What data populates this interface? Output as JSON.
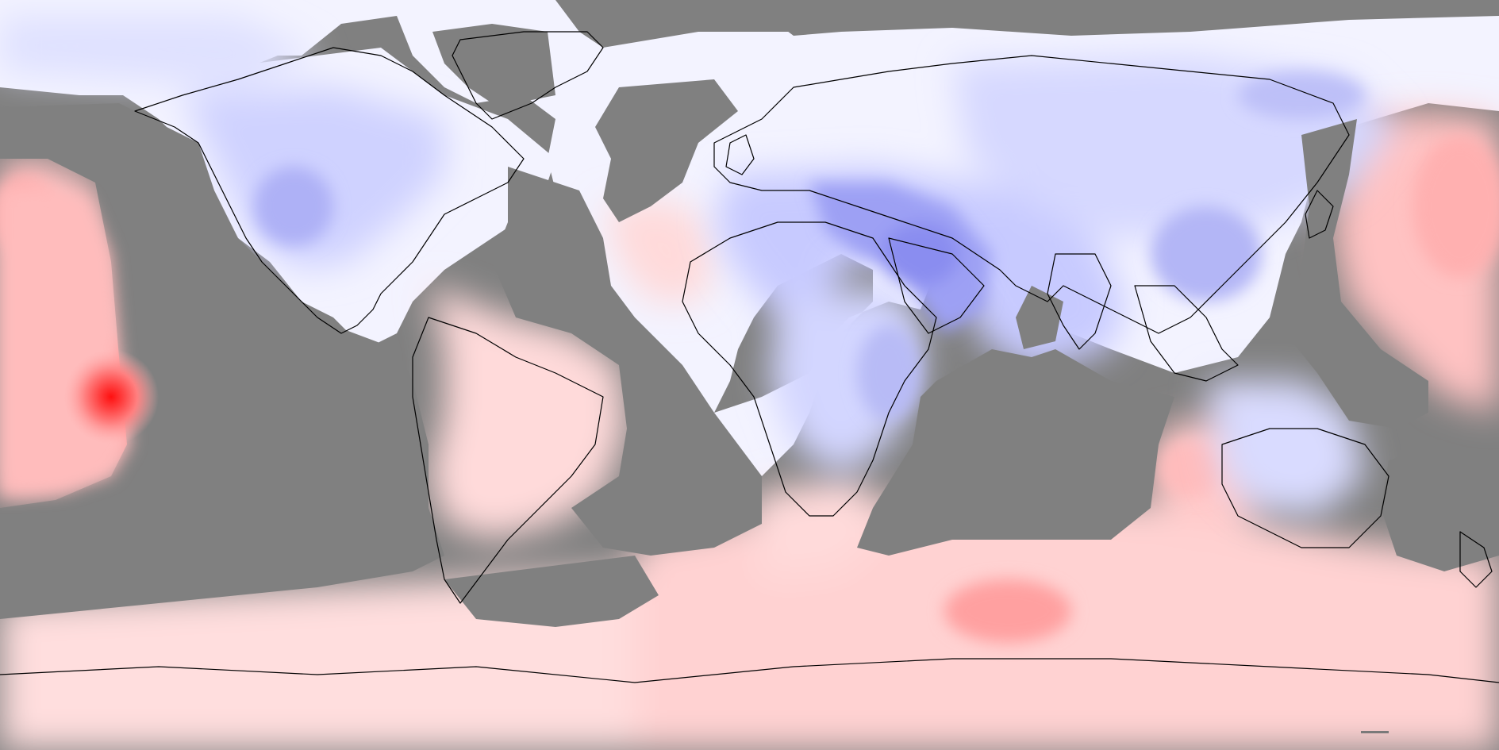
{
  "map": {
    "projection": "equirectangular",
    "central_longitude": -25,
    "colors": {
      "missing": "#808080",
      "warm_strong": "#ff2020",
      "warm": "#ff9a9a",
      "warm_light": "#ffd6d6",
      "near_zero": "#fbf6fb",
      "cool_light": "#e6e8ff",
      "cool": "#b9bcf6",
      "cool_strong": "#8a8df0",
      "coastline": "#000000"
    }
  }
}
